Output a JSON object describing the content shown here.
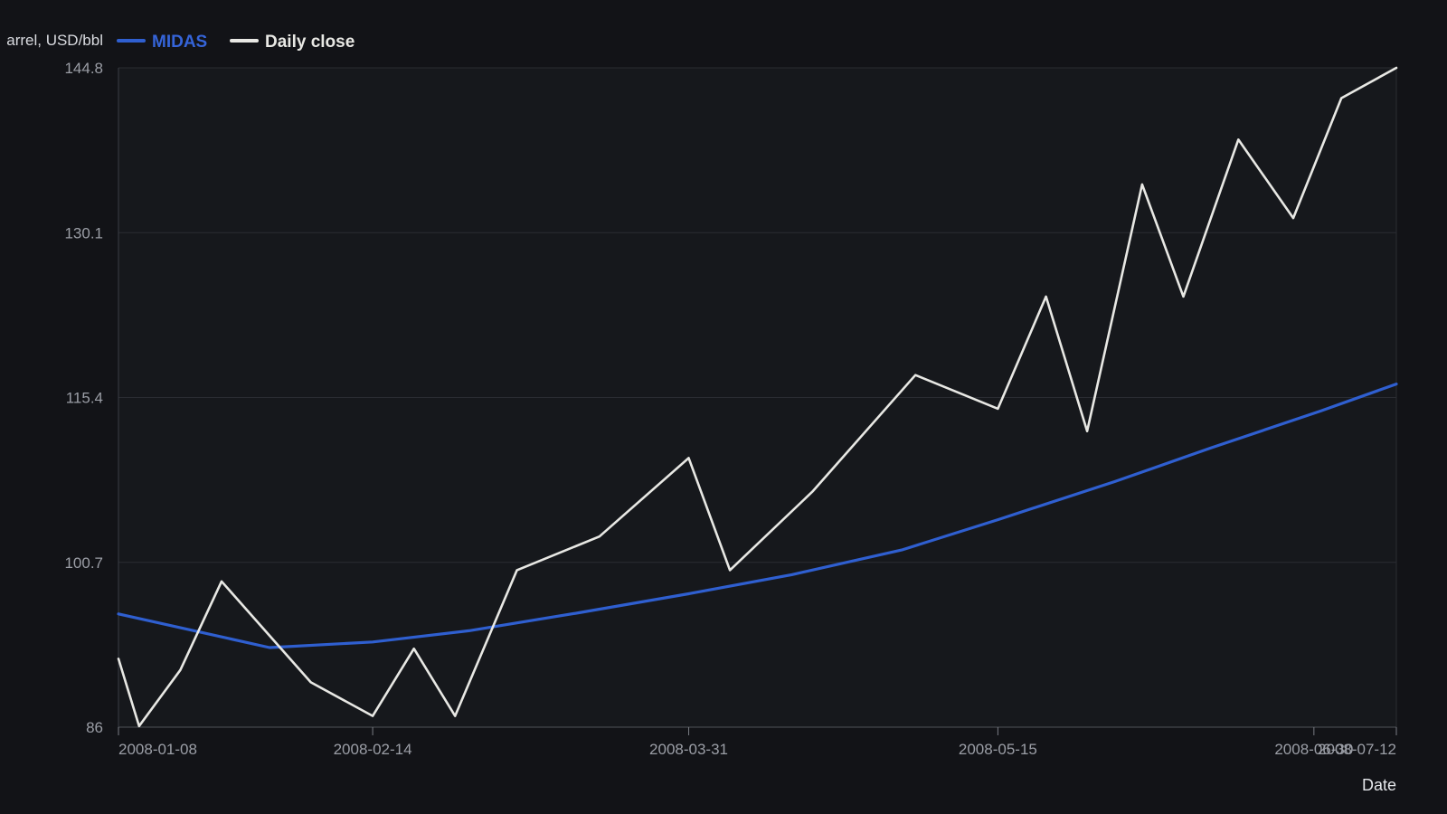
{
  "chart_data": {
    "type": "line",
    "ylabel": "arrel, USD/bbl",
    "xlabel": "Date",
    "ylim": [
      86,
      144.8
    ],
    "yticks": [
      86,
      100.7,
      115.4,
      130.1,
      144.8
    ],
    "ytick_labels": [
      "86",
      "100.7",
      "115.4",
      "130.1",
      "144.8"
    ],
    "xlim": [
      "2008-01-08",
      "2008-07-12"
    ],
    "xticks": [
      "2008-01-08",
      "2008-02-14",
      "2008-03-31",
      "2008-05-15",
      "2008-06-30",
      "2008-07-12"
    ],
    "grid": true,
    "legend": "top-left",
    "series": [
      {
        "name": "MIDAS",
        "color": "#2f5fd0",
        "points": [
          [
            "2008-01-08",
            96.1
          ],
          [
            "2008-01-30",
            93.1
          ],
          [
            "2008-02-14",
            93.6
          ],
          [
            "2008-02-28",
            94.6
          ],
          [
            "2008-03-15",
            96.2
          ],
          [
            "2008-03-31",
            97.9
          ],
          [
            "2008-04-15",
            99.6
          ],
          [
            "2008-05-01",
            101.8
          ],
          [
            "2008-05-15",
            104.5
          ],
          [
            "2008-06-01",
            107.9
          ],
          [
            "2008-06-15",
            110.9
          ],
          [
            "2008-07-01",
            114.2
          ],
          [
            "2008-07-12",
            116.6
          ]
        ]
      },
      {
        "name": "Daily close",
        "color": "#e8e8e4",
        "points": [
          [
            "2008-01-08",
            92.1
          ],
          [
            "2008-01-11",
            86.1
          ],
          [
            "2008-01-17",
            91.1
          ],
          [
            "2008-01-23",
            99.0
          ],
          [
            "2008-02-05",
            90.0
          ],
          [
            "2008-02-14",
            87.0
          ],
          [
            "2008-02-20",
            93.0
          ],
          [
            "2008-02-26",
            87.0
          ],
          [
            "2008-03-06",
            100.0
          ],
          [
            "2008-03-18",
            103.0
          ],
          [
            "2008-03-31",
            110.0
          ],
          [
            "2008-04-06",
            100.0
          ],
          [
            "2008-04-18",
            107.0
          ],
          [
            "2008-05-03",
            117.4
          ],
          [
            "2008-05-15",
            114.4
          ],
          [
            "2008-05-22",
            124.4
          ],
          [
            "2008-05-28",
            112.4
          ],
          [
            "2008-06-05",
            134.4
          ],
          [
            "2008-06-11",
            124.4
          ],
          [
            "2008-06-19",
            138.4
          ],
          [
            "2008-06-27",
            131.4
          ],
          [
            "2008-07-04",
            142.1
          ],
          [
            "2008-07-12",
            144.8
          ]
        ]
      }
    ]
  }
}
